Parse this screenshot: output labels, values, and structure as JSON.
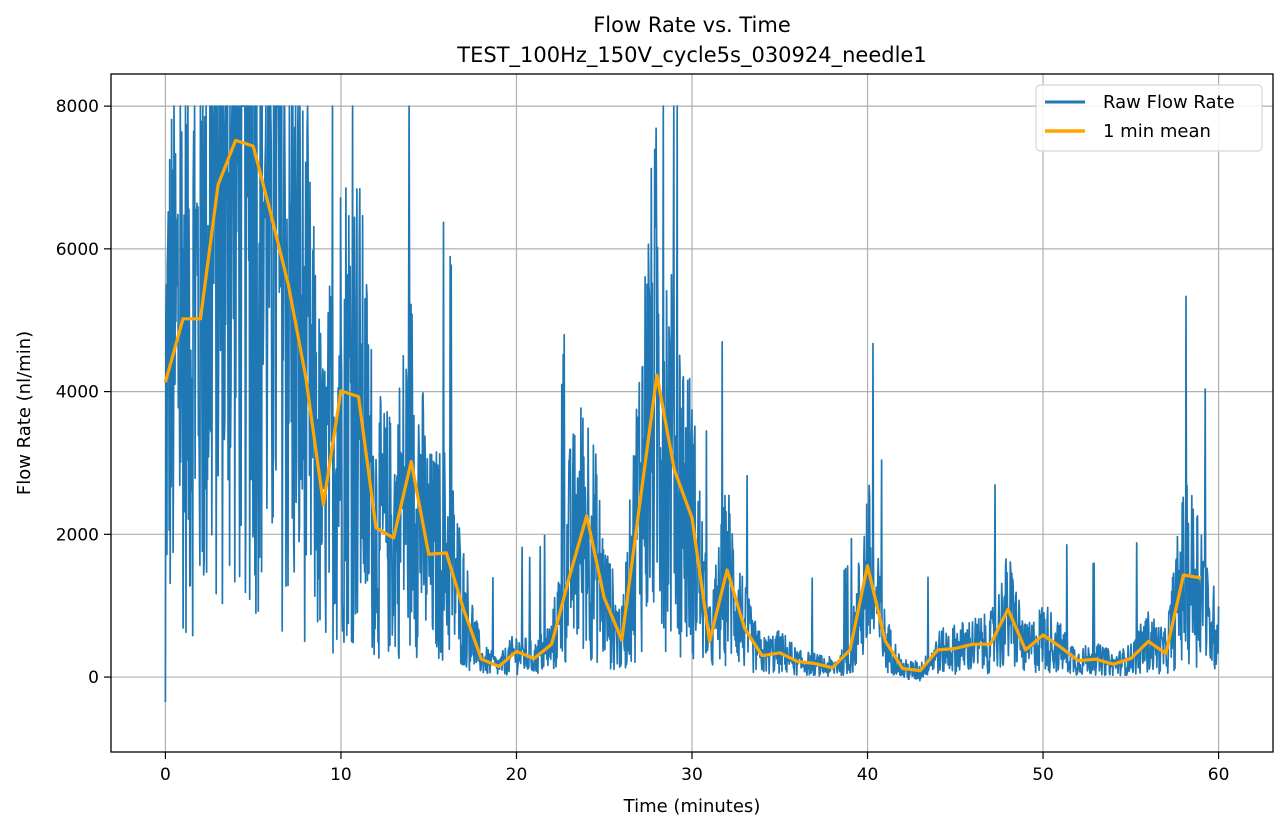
{
  "chart_data": {
    "type": "line",
    "title": "Flow Rate vs. Time",
    "subtitle": "TEST_100Hz_150V_cycle5s_030924_needle1",
    "xlabel": "Time (minutes)",
    "ylabel": "Flow Rate (nl/min)",
    "xlim": [
      -3.1,
      63.1
    ],
    "ylim": [
      -1050,
      8450
    ],
    "x_ticks": [
      0,
      10,
      20,
      30,
      40,
      50,
      60
    ],
    "y_ticks": [
      0,
      2000,
      4000,
      6000,
      8000
    ],
    "grid": true,
    "legend_position": "top-right",
    "series": [
      {
        "name": "Raw Flow Rate",
        "color": "#1f77b4",
        "style": "noisy raw signal, clipped at 8000",
        "x": [
          0,
          0.5,
          1,
          1.5,
          2,
          2.5,
          3,
          3.5,
          4,
          4.5,
          5,
          5.5,
          6,
          6.5,
          7,
          7.5,
          8,
          8.5,
          9,
          9.5,
          10,
          10.5,
          11,
          11.5,
          12,
          12.5,
          13,
          13.5,
          14,
          14.5,
          15,
          15.5,
          16,
          16.5,
          17,
          17.5,
          18,
          18.5,
          19,
          19.5,
          20,
          20.5,
          21,
          21.5,
          22,
          22.5,
          23,
          23.5,
          24,
          24.5,
          25,
          25.5,
          26,
          26.5,
          27,
          27.5,
          28,
          28.5,
          29,
          29.5,
          30,
          30.5,
          31,
          31.5,
          32,
          32.5,
          33,
          33.5,
          34,
          34.5,
          35,
          35.5,
          36,
          36.5,
          37,
          37.5,
          38,
          38.5,
          39,
          39.5,
          40,
          40.5,
          41,
          41.5,
          42,
          42.5,
          43,
          43.5,
          44,
          44.5,
          45,
          45.5,
          46,
          46.5,
          47,
          47.5,
          48,
          48.5,
          49,
          49.5,
          50,
          50.5,
          51,
          51.5,
          52,
          52.5,
          53,
          53.5,
          54,
          54.5,
          55,
          55.5,
          56,
          56.5,
          57,
          57.5,
          58,
          58.5,
          59,
          59.5,
          60
        ],
        "values": [
          4100,
          4600,
          5000,
          5000,
          5000,
          5600,
          6900,
          7300,
          7500,
          7500,
          7400,
          6900,
          6400,
          6000,
          5500,
          4900,
          4200,
          3300,
          2400,
          3200,
          4000,
          4000,
          3900,
          3000,
          2100,
          2050,
          1950,
          2500,
          3000,
          2400,
          1700,
          1720,
          1750,
          1400,
          1000,
          600,
          250,
          200,
          150,
          250,
          350,
          300,
          250,
          350,
          450,
          900,
          1700,
          2000,
          2250,
          1700,
          1100,
          800,
          500,
          1400,
          2600,
          3600,
          4200,
          3600,
          2900,
          2600,
          2200,
          1400,
          500,
          1000,
          1500,
          1100,
          700,
          450,
          300,
          330,
          350,
          300,
          200,
          190,
          180,
          150,
          130,
          200,
          250,
          900,
          1550,
          1000,
          500,
          300,
          100,
          90,
          80,
          200,
          350,
          370,
          400,
          420,
          450,
          460,
          470,
          700,
          950,
          700,
          380,
          450,
          580,
          500,
          400,
          300,
          220,
          240,
          250,
          230,
          180,
          210,
          250,
          380,
          500,
          420,
          350,
          900,
          1420,
          1410,
          1380,
          600,
          800
        ]
      },
      {
        "name": "1 min mean",
        "color": "#ffa500",
        "x": [
          0,
          1,
          2,
          3,
          4,
          5,
          6,
          7,
          8,
          9,
          10,
          11,
          12,
          13,
          14,
          15,
          16,
          17,
          18,
          19,
          20,
          21,
          22,
          23,
          24,
          25,
          26,
          27,
          28,
          29,
          30,
          31,
          32,
          33,
          34,
          35,
          36,
          37,
          38,
          39,
          40,
          41,
          42,
          43,
          44,
          45,
          46,
          47,
          48,
          49,
          50,
          51,
          52,
          53,
          54,
          55,
          56,
          57,
          58,
          59
        ],
        "values": [
          4130,
          5020,
          5020,
          6900,
          7520,
          7440,
          6500,
          5500,
          4200,
          2420,
          4010,
          3930,
          2090,
          1950,
          3020,
          1720,
          1740,
          940,
          250,
          150,
          360,
          260,
          460,
          1390,
          2260,
          1110,
          520,
          2380,
          4230,
          2900,
          2230,
          500,
          1500,
          680,
          300,
          340,
          220,
          190,
          130,
          380,
          1560,
          510,
          120,
          90,
          380,
          400,
          460,
          460,
          950,
          380,
          590,
          420,
          230,
          250,
          180,
          260,
          500,
          330,
          1430,
          1390
        ]
      }
    ]
  }
}
